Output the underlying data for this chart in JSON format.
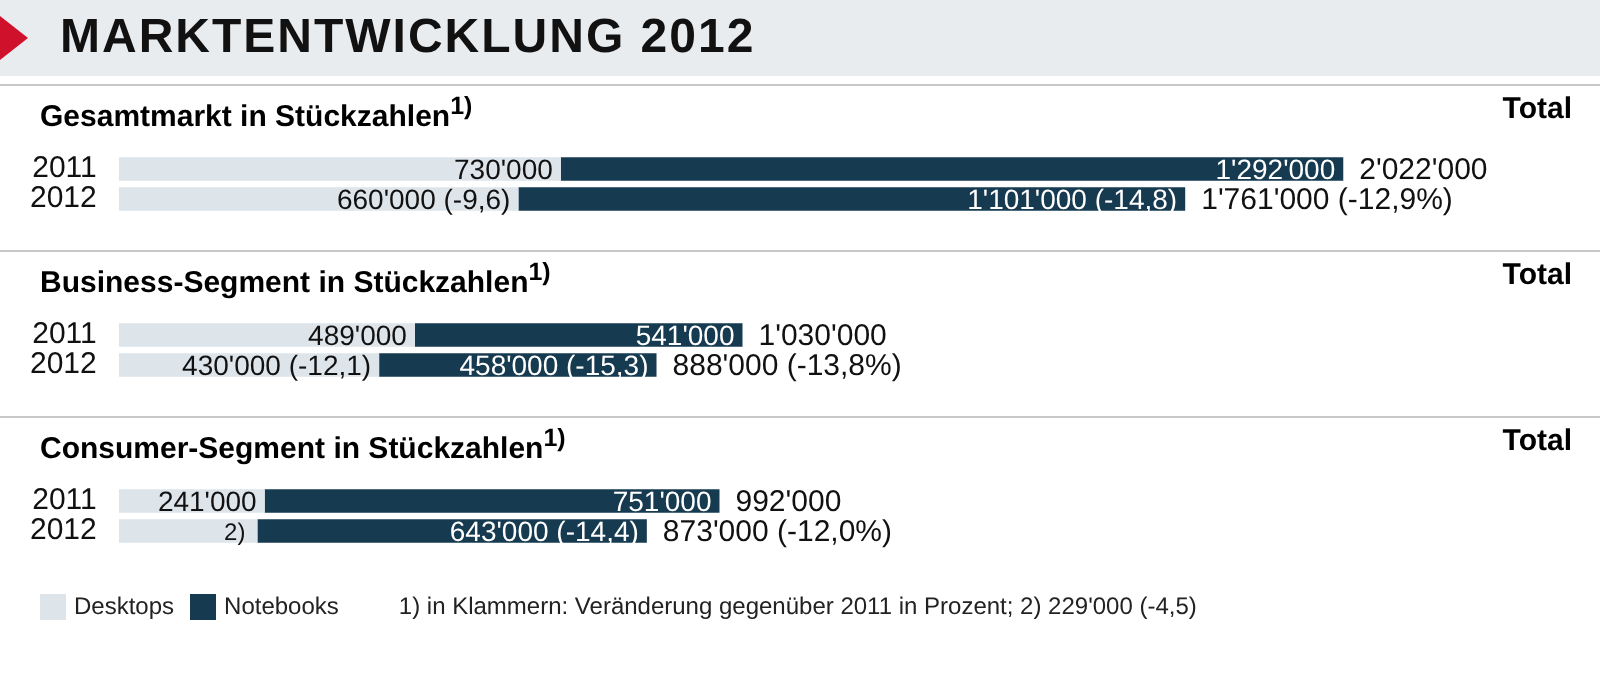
{
  "chart_data": [
    {
      "type": "bar",
      "orientation": "horizontal",
      "stacked": true,
      "title": "MARKTENTWICKLUNG 2012",
      "subtitle": "Gesamtmarkt in Stückzahlen$^{1)}$",
      "categories": [
        "2011",
        "2012"
      ],
      "tick_labels": "y",
      "grid": false,
      "legend": false,
      "series": [
        {
          "color": "#dde4ea",
          "values": [
            730000,
            660000
          ],
          "value_labels": [
            "730'000",
            "660'000 (-9,6)"
          ]
        },
        {
          "color": "#163a50",
          "values": [
            1292000,
            1101000
          ],
          "value_labels": [
            "1'292'000",
            "1'101'000 (-14,8)"
          ]
        }
      ],
      "totals": [
        "2'022'000",
        "1'761'000 (-12,9%)"
      ],
      "annotations": [
        "Total"
      ]
    },
    {
      "type": "bar",
      "orientation": "horizontal",
      "stacked": true,
      "title": "Business-Segment in Stückzahlen$^{1)}$",
      "categories": [
        "2011",
        "2012"
      ],
      "tick_labels": "y",
      "grid": false,
      "legend": false,
      "series": [
        {
          "color": "#dde4ea",
          "values": [
            489000,
            430000
          ],
          "value_labels": [
            "489'000",
            "430'000 (-12,1)"
          ]
        },
        {
          "color": "#163a50",
          "values": [
            541000,
            458000
          ],
          "value_labels": [
            "541'000",
            "458'000 (-15,3)"
          ]
        }
      ],
      "totals": [
        "1'030'000",
        "888'000 (-13,8%)"
      ],
      "annotations": [
        "Total"
      ]
    },
    {
      "type": "bar",
      "orientation": "horizontal",
      "stacked": true,
      "title": "Consumer-Segment in Stückzahlen$^{1)}$",
      "categories": [
        "2011",
        "2012"
      ],
      "tick_labels": "y",
      "grid": false,
      "legend": "bottom left",
      "series": [
        {
          "name": "Desktops",
          "color": "#dde4ea",
          "values": [
            241000,
            229000
          ],
          "value_labels": [
            "241'000",
            null
          ]
        },
        {
          "name": "Notebooks",
          "color": "#163a50",
          "values": [
            751000,
            643000
          ],
          "value_labels": [
            "751'000",
            "643'000 (-14,4)"
          ]
        }
      ],
      "totals": [
        "992'000",
        "873'000 (-12,0%)"
      ],
      "annotations": [
        "Total",
        "1) in Klammern: Veränderung gegenüber 2011 in Prozent; 2) 229'000 (-4,5)",
        {
          "text": "2)",
          "x": 229000,
          "y": "2012"
        }
      ]
    }
  ]
}
